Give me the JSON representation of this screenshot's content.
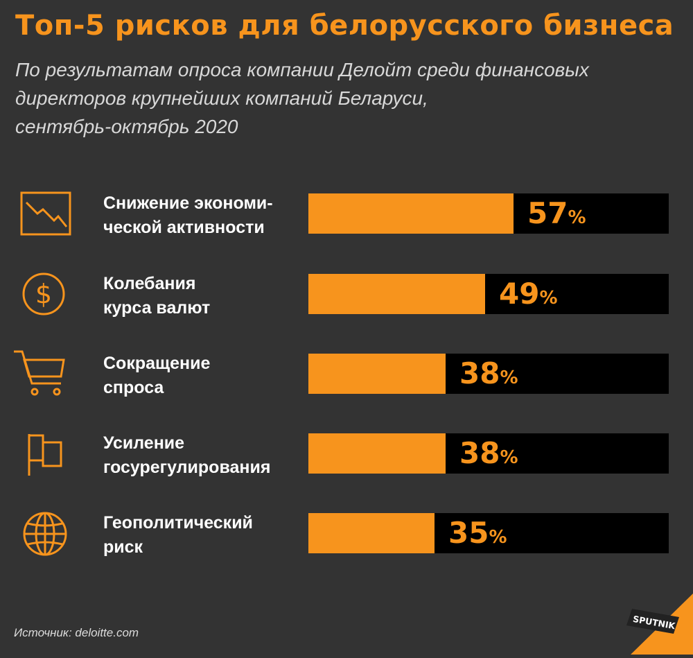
{
  "title": "Топ-5 рисков для белорусского бизнеса",
  "subtitle": {
    "line1": "По результатам опроса компании Делойт среди финансовых",
    "line2": "директоров крупнейших компаний Беларуси,",
    "line3": "сентябрь-октябрь 2020"
  },
  "source": "Источник: deloitte.com",
  "logo_text": "SPUTNIK",
  "colors": {
    "accent": "#f7941d",
    "background": "#333333",
    "track": "#000000"
  },
  "chart_data": {
    "type": "bar",
    "orientation": "horizontal",
    "unit": "%",
    "xlim": [
      0,
      100
    ],
    "grid": false,
    "categories": [
      {
        "lines": [
          "Снижение экономи-",
          "ческой активности"
        ],
        "icon": "chart-down-icon"
      },
      {
        "lines": [
          "Колебания",
          "курса валют"
        ],
        "icon": "dollar-coin-icon"
      },
      {
        "lines": [
          "Сокращение",
          "спроса"
        ],
        "icon": "shopping-cart-icon"
      },
      {
        "lines": [
          "Усиление",
          "госурегулирования"
        ],
        "icon": "flag-icon"
      },
      {
        "lines": [
          "Геополитический",
          "риск"
        ],
        "icon": "globe-icon"
      }
    ],
    "values": [
      57,
      49,
      38,
      38,
      35
    ],
    "value_labels": [
      "57",
      "49",
      "38",
      "38",
      "35"
    ],
    "percent_sign": "%"
  }
}
